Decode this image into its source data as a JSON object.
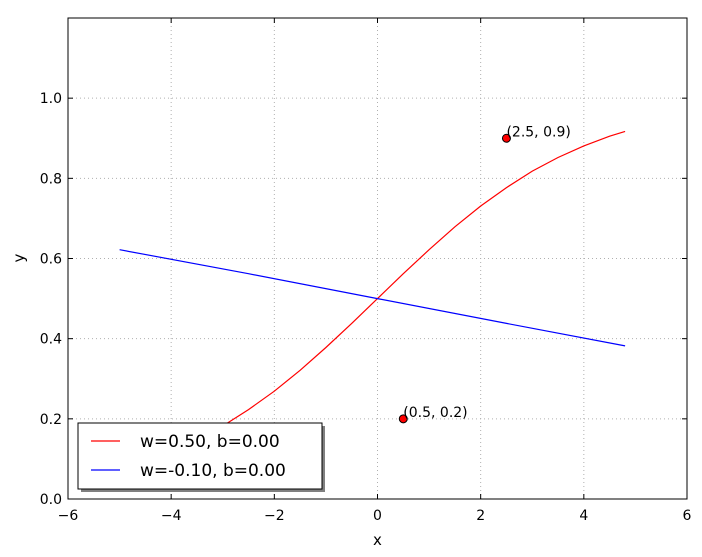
{
  "chart_data": {
    "type": "line",
    "xlabel": "x",
    "ylabel": "y",
    "xlim": [
      -6,
      6
    ],
    "ylim": [
      0.0,
      1.2
    ],
    "xticks": [
      -6,
      -4,
      -2,
      0,
      2,
      4,
      6
    ],
    "xtick_labels": [
      "−6",
      "−4",
      "−2",
      "0",
      "2",
      "4",
      "6"
    ],
    "yticks": [
      0.0,
      0.2,
      0.4,
      0.6,
      0.8,
      1.0
    ],
    "ytick_labels": [
      "0.0",
      "0.2",
      "0.4",
      "0.6",
      "0.8",
      "1.0"
    ],
    "grid": true,
    "legend_position": "lower-left",
    "series": [
      {
        "name": "w=0.50, b=0.00",
        "color": "#ff0000",
        "x": [
          -5.0,
          -4.5,
          -4.0,
          -3.5,
          -3.0,
          -2.5,
          -2.0,
          -1.5,
          -1.0,
          -0.5,
          0.0,
          0.5,
          1.0,
          1.5,
          2.0,
          2.5,
          3.0,
          3.5,
          4.0,
          4.5,
          4.8
        ],
        "y": [
          0.076,
          0.095,
          0.119,
          0.148,
          0.182,
          0.223,
          0.269,
          0.321,
          0.378,
          0.438,
          0.5,
          0.562,
          0.622,
          0.679,
          0.731,
          0.777,
          0.818,
          0.852,
          0.881,
          0.905,
          0.917
        ]
      },
      {
        "name": "w=-0.10, b=0.00",
        "color": "#0000ff",
        "x": [
          -5.0,
          -2.5,
          0.0,
          2.5,
          4.8
        ],
        "y": [
          0.622,
          0.562,
          0.5,
          0.438,
          0.382
        ]
      }
    ],
    "points": [
      {
        "x": 2.5,
        "y": 0.9,
        "label": "(2.5, 0.9)",
        "color": "#ff0000"
      },
      {
        "x": 0.5,
        "y": 0.2,
        "label": "(0.5, 0.2)",
        "color": "#ff0000"
      }
    ]
  }
}
